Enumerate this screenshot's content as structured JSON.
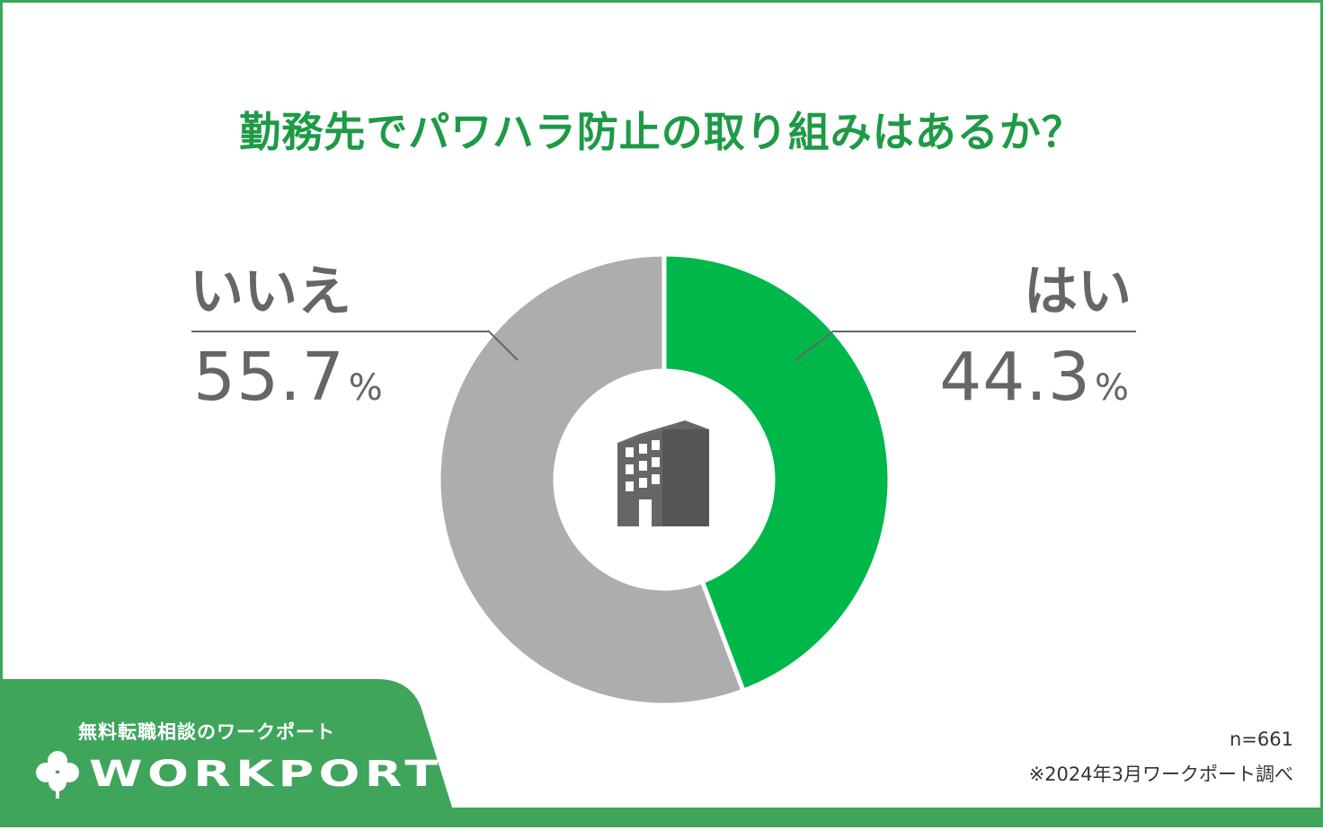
{
  "chart_data": {
    "type": "donut",
    "title": "勤務先でパワハラ防止の取り組みはあるか？",
    "categories": [
      "はい",
      "いいえ"
    ],
    "values": [
      44.3,
      55.7
    ],
    "value_labels": [
      "44.3",
      "55.7"
    ],
    "unit": "%",
    "colors": [
      "#00b84a",
      "#adadad"
    ],
    "center_icon": "office-building-icon",
    "legend": "none"
  },
  "footer": {
    "sample_size": "n=661",
    "source": "※2024年3月ワークポート調べ"
  },
  "logo": {
    "tagline": "無料転職相談のワークポート",
    "wordmark": "WORKPORT",
    "icon": "clover-icon",
    "panel_color": "#3fa55b"
  }
}
